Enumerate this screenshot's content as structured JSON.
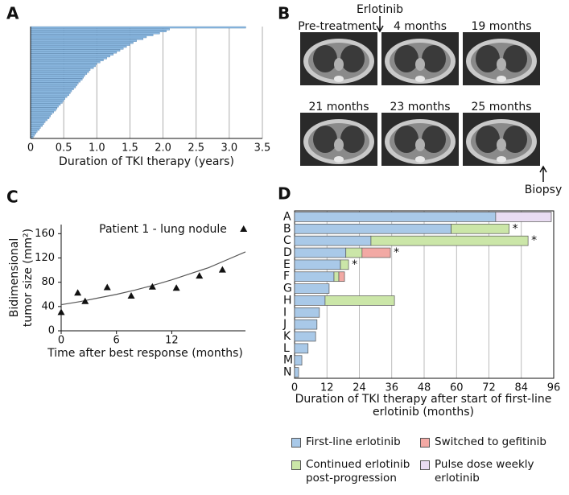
{
  "chart_data": [
    {
      "type": "bar",
      "orientation": "horizontal",
      "panel_label": "A",
      "values": [
        3.25,
        2.1,
        2.05,
        1.95,
        1.85,
        1.75,
        1.7,
        1.6,
        1.55,
        1.5,
        1.45,
        1.4,
        1.35,
        1.3,
        1.25,
        1.2,
        1.15,
        1.1,
        1.05,
        1.0,
        0.98,
        0.95,
        0.9,
        0.88,
        0.85,
        0.82,
        0.8,
        0.78,
        0.75,
        0.72,
        0.7,
        0.68,
        0.65,
        0.62,
        0.6,
        0.58,
        0.55,
        0.52,
        0.5,
        0.48,
        0.45,
        0.42,
        0.4,
        0.38,
        0.35,
        0.32,
        0.3,
        0.28,
        0.25,
        0.22,
        0.2,
        0.18,
        0.15,
        0.13,
        0.1,
        0.08,
        0.06,
        0.04
      ],
      "color": "#8ebbe3",
      "xlabel": "Duration of TKI therapy (years)",
      "xlim": [
        0,
        3.5
      ],
      "xticks": [
        0,
        0.5,
        {
          "value": 1,
          "label": "1.0"
        },
        1.5,
        {
          "value": 2,
          "label": "2.0"
        },
        2.5,
        {
          "value": 3,
          "label": "3.0"
        },
        3.5
      ],
      "grid": true
    },
    {
      "type": "scatter",
      "panel_label": "C",
      "title": "Patient 1 - lung nodule",
      "x": [
        0,
        1.8,
        2.6,
        5,
        7.6,
        9.9,
        12.5,
        15,
        17.5,
        19.8
      ],
      "values": [
        30,
        62,
        48,
        71,
        57,
        72,
        70,
        90,
        100,
        167
      ],
      "color": "#111111",
      "marker": "triangle",
      "fit_line": {
        "x": [
          0,
          2,
          4,
          6,
          8,
          10,
          12,
          14,
          16,
          18,
          20
        ],
        "values": [
          43,
          48,
          54,
          60,
          67,
          75,
          84,
          94,
          104,
          117,
          130
        ],
        "color": "#555555"
      },
      "xlabel": "Time after best response (months)",
      "ylabel": [
        "Bidimensional",
        "tumor size (mm²)"
      ],
      "xlim": [
        0,
        20
      ],
      "xticks": [
        0,
        6,
        12
      ],
      "ylim": [
        0,
        175
      ],
      "yticks": [
        0,
        40,
        80,
        120,
        160
      ]
    },
    {
      "type": "stacked_bar",
      "orientation": "horizontal",
      "panel_label": "D",
      "categories": [
        "A",
        "B",
        "C",
        "D",
        "E",
        "F",
        "G",
        "H",
        "I",
        "J",
        "K",
        "L",
        "M",
        "N"
      ],
      "series": [
        {
          "name": "First-line erlotinib",
          "color": "#a9c9e8",
          "values": [
            74.5,
            58,
            28.3,
            19,
            17,
            14.6,
            12.8,
            11.3,
            9.2,
            8.3,
            7.8,
            5,
            2.7,
            1.5
          ]
        },
        {
          "name": "Continued erlotinib post-progression",
          "color": "#cbe6a8",
          "values": [
            null,
            21.5,
            58.2,
            6,
            3,
            1.8,
            null,
            25.7,
            null,
            null,
            null,
            null,
            null,
            null
          ]
        },
        {
          "name": "Switched to gefitinib",
          "color": "#f2a9a4",
          "values": [
            null,
            null,
            null,
            10.5,
            null,
            2.1,
            null,
            null,
            null,
            null,
            null,
            null,
            null,
            null
          ]
        },
        {
          "name": "Pulse dose weekly erlotinib",
          "color": "#e9dcf2",
          "values": [
            20.6,
            null,
            null,
            null,
            null,
            null,
            null,
            null,
            null,
            null,
            null,
            null,
            null,
            null
          ]
        }
      ],
      "markers": [
        null,
        "*",
        "*",
        "*",
        "*",
        null,
        null,
        null,
        null,
        null,
        null,
        null,
        null,
        null
      ],
      "xlabel": "Duration of TKI therapy after start of first-line erlotinib (months)",
      "xlim": [
        0,
        96
      ],
      "xticks": [
        0,
        12,
        24,
        36,
        48,
        60,
        72,
        84,
        96
      ],
      "grid": true
    }
  ],
  "image_panel": {
    "panel_label": "B",
    "images": [
      {
        "label": "Pre-treatment"
      },
      {
        "label": "4 months"
      },
      {
        "label": "19 months"
      },
      {
        "label": "21 months"
      },
      {
        "label": "23 months"
      },
      {
        "label": "25 months"
      }
    ],
    "start_arrow": "Erlotinib",
    "end_arrow": "Biopsy"
  }
}
